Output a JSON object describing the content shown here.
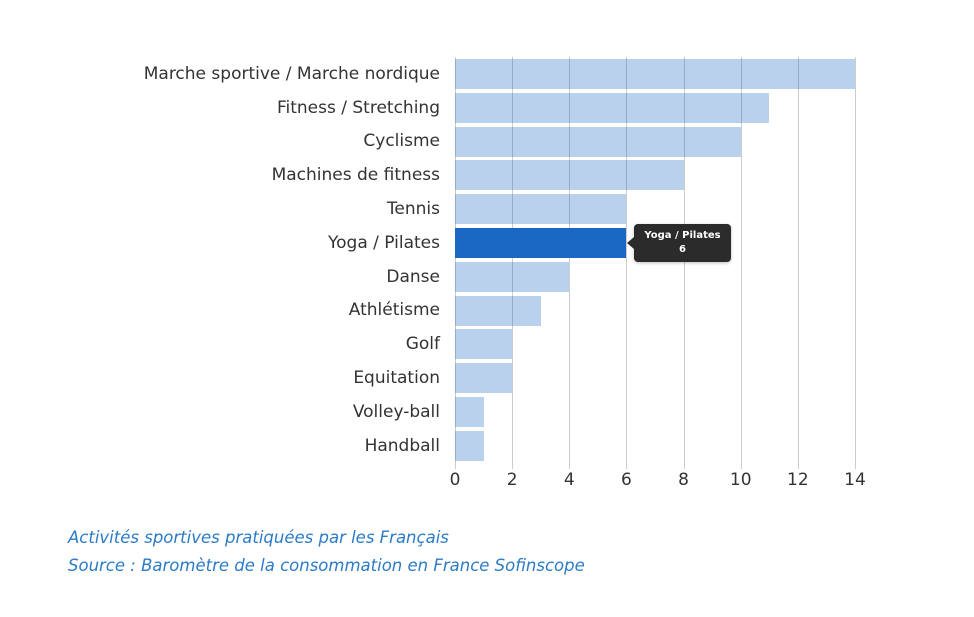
{
  "chart_data": {
    "type": "bar",
    "orientation": "horizontal",
    "title": "",
    "xlabel": "",
    "ylabel": "",
    "categories": [
      "Marche sportive / Marche nordique",
      "Fitness / Stretching",
      "Cyclisme",
      "Machines de fitness",
      "Tennis",
      "Yoga / Pilates",
      "Danse",
      "Athlétisme",
      "Golf",
      "Equitation",
      "Volley-ball",
      "Handball"
    ],
    "values": [
      14,
      11,
      10,
      8,
      6,
      6,
      4,
      3,
      2,
      2,
      1,
      1
    ],
    "xlim": [
      0,
      14
    ],
    "xticks": [
      0,
      2,
      4,
      6,
      8,
      10,
      12,
      14
    ],
    "grid": true,
    "legend": false,
    "highlight": {
      "index": 5,
      "category": "Yoga / Pilates",
      "value": 6
    }
  },
  "tooltip": {
    "title": "Yoga / Pilates",
    "value": "6"
  },
  "caption": {
    "line1": "Activités sportives pratiquées par les Français",
    "line2": "Source : Baromètre de la consommation en France Sofinscope"
  },
  "colors": {
    "bar_active": "#1b67c4",
    "bar_inactive": "rgba(27,103,196,0.30)",
    "gridline": "#cccccc",
    "axis_text": "#333333",
    "caption_text": "#2b7bc7",
    "tooltip_bg": "#2b2b2b",
    "tooltip_text": "#ffffff"
  }
}
